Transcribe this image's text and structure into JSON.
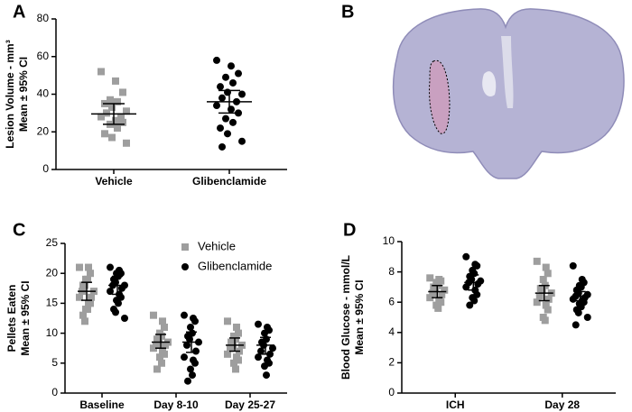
{
  "chart_data": [
    {
      "panel": "A",
      "type": "dotplot",
      "ylabel": [
        "Lesion Volume - mm³",
        "Mean ± 95% CI"
      ],
      "categories": [
        "Vehicle",
        "Glibenclamide"
      ],
      "ylim": [
        0,
        80
      ],
      "yticks": [
        0,
        20,
        40,
        60,
        80
      ],
      "colors": [
        "#9e9e9e",
        "#000000"
      ],
      "markers": [
        "square",
        "circle"
      ],
      "values": [
        [
          52,
          47,
          41,
          37,
          36,
          35,
          33,
          31,
          30,
          28,
          28,
          26,
          25,
          24,
          22,
          19,
          17,
          14
        ],
        [
          58,
          55,
          51,
          49,
          46,
          44,
          41,
          40,
          38,
          36,
          34,
          32,
          30,
          27,
          25,
          22,
          19,
          15,
          12
        ]
      ],
      "means": [
        29.5,
        36
      ],
      "ci": [
        [
          24,
          35
        ],
        [
          30,
          42
        ]
      ]
    },
    {
      "panel": "B",
      "type": "image"
    },
    {
      "panel": "C",
      "type": "dotplot",
      "ylabel": [
        "Pellets Eaten",
        "Mean ± 95% CI"
      ],
      "categories": [
        "Baseline",
        "Day 8-10",
        "Day 25-27"
      ],
      "ylim": [
        0,
        25
      ],
      "yticks": [
        0,
        5,
        10,
        15,
        20,
        25
      ],
      "series": [
        {
          "name": "Vehicle",
          "color": "#9e9e9e",
          "marker": "square",
          "values": [
            [
              21,
              21,
              20,
              19,
              19,
              18,
              18,
              17,
              17,
              16,
              16,
              15,
              15,
              14,
              14,
              13,
              12
            ],
            [
              13,
              12,
              11,
              10,
              9.5,
              9,
              9,
              8.5,
              8,
              8,
              7.5,
              7,
              6.5,
              6,
              5,
              4
            ],
            [
              12,
              11,
              10,
              9.5,
              9,
              8.5,
              8,
              8,
              7.5,
              7,
              6.5,
              6,
              5.5,
              5,
              4
            ]
          ],
          "means": [
            17,
            8.5,
            8
          ],
          "ci": [
            [
              15.5,
              18.5
            ],
            [
              7.5,
              9.8
            ],
            [
              7,
              9.2
            ]
          ]
        },
        {
          "name": "Glibenclamide",
          "color": "#000000",
          "marker": "circle",
          "values": [
            [
              21,
              20.5,
              20,
              20,
              19.5,
              19,
              18.5,
              18,
              18,
              17.5,
              17,
              16.5,
              16,
              15.5,
              15,
              14,
              13.5,
              12.5
            ],
            [
              13,
              12.5,
              12,
              11,
              10,
              9.5,
              9,
              8.5,
              8,
              7,
              6,
              5.5,
              5,
              4,
              3,
              2
            ],
            [
              11.5,
              11,
              10.5,
              10,
              9,
              8.5,
              8,
              7.5,
              7,
              6.5,
              6,
              5.5,
              5,
              4.5,
              3
            ]
          ],
          "means": [
            18,
            8.5,
            8
          ],
          "ci": [
            [
              16.5,
              19.5
            ],
            [
              6.8,
              10.2
            ],
            [
              6.5,
              9.3
            ]
          ]
        }
      ]
    },
    {
      "panel": "D",
      "type": "dotplot",
      "ylabel": [
        "Blood Glucose - mmol/L",
        "Mean ± 95% CI"
      ],
      "categories": [
        "ICH",
        "Day 28"
      ],
      "ylim": [
        0,
        10
      ],
      "yticks": [
        0,
        2,
        4,
        6,
        8,
        10
      ],
      "series": [
        {
          "color": "#9e9e9e",
          "marker": "square",
          "values": [
            [
              7.6,
              7.5,
              7.4,
              7.3,
              7.1,
              7.0,
              6.9,
              6.8,
              6.6,
              6.5,
              6.3,
              6.1,
              6.0,
              5.8,
              5.6
            ],
            [
              8.7,
              8.3,
              7.9,
              7.5,
              7.1,
              6.9,
              6.8,
              6.6,
              6.4,
              6.2,
              6.0,
              5.8,
              5.5,
              5.0,
              4.8
            ]
          ],
          "means": [
            6.7,
            6.6
          ],
          "ci": [
            [
              6.3,
              7.1
            ],
            [
              6.1,
              7.1
            ]
          ]
        },
        {
          "color": "#000000",
          "marker": "circle",
          "values": [
            [
              9.0,
              8.5,
              8.4,
              8.1,
              7.9,
              7.7,
              7.5,
              7.4,
              7.3,
              7.2,
              7.0,
              6.8,
              6.5,
              6.3,
              6.1,
              5.8
            ],
            [
              8.4,
              7.5,
              7.3,
              7.1,
              7.0,
              6.8,
              6.6,
              6.5,
              6.4,
              6.3,
              6.2,
              6.1,
              6.0,
              5.9,
              5.7,
              5.5,
              5.3,
              5.0,
              4.5
            ]
          ],
          "means": [
            7.3,
            6.4
          ],
          "ci": [
            [
              6.8,
              7.8
            ],
            [
              6.1,
              6.7
            ]
          ]
        }
      ]
    }
  ]
}
